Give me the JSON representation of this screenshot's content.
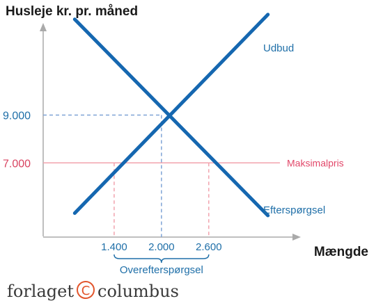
{
  "chart_data": {
    "type": "line",
    "title": "",
    "ylabel": "Husleje kr. pr. måned",
    "xlabel": "Mængde",
    "xlim": [
      500,
      3750
    ],
    "ylim": [
      3900,
      12500
    ],
    "series": [
      {
        "name": "Udbud",
        "points": [
          [
            900,
            4900
          ],
          [
            3350,
            13200
          ]
        ]
      },
      {
        "name": "Efterspørgsel",
        "points": [
          [
            900,
            13000
          ],
          [
            3350,
            4800
          ]
        ]
      }
    ],
    "price_ceiling": {
      "label": "Maksimalpris",
      "value": 7000,
      "color": "#f2a3ad",
      "label_color": "#e2486a"
    },
    "equilibrium": {
      "x": 2000,
      "y": 9000
    },
    "y_ticks": [
      {
        "value": 9000,
        "label": "9.000",
        "color": "#1f6fa8"
      },
      {
        "value": 7000,
        "label": "7.000",
        "color": "#d94461"
      }
    ],
    "x_ticks": [
      {
        "value": 1400,
        "label": "1.400"
      },
      {
        "value": 2000,
        "label": "2.000"
      },
      {
        "value": 2600,
        "label": "2.600"
      }
    ],
    "bracket": {
      "from": 1400,
      "to": 2600,
      "label": "Overefterspørgsel"
    },
    "colors": {
      "curve": "#1567b0",
      "label_blue": "#1f6fa8",
      "axis": "#aaaaaa",
      "dash_blue": "#7fa3d6",
      "dash_red": "#f2a3ad"
    }
  },
  "logo": {
    "left": "forlaget",
    "right": "columbus"
  }
}
